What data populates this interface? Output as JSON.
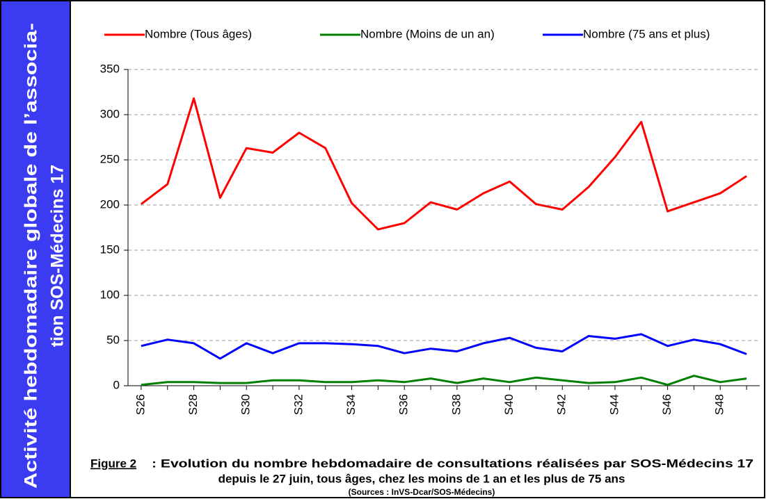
{
  "sidebar": {
    "lines": [
      "Activité hebdomadaire globale de l’associa-",
      "tion SOS-Médecins 17"
    ]
  },
  "chart_data": {
    "type": "line",
    "categories": [
      "S26",
      null,
      "S28",
      null,
      "S30",
      null,
      "S32",
      null,
      "S34",
      null,
      "S36",
      null,
      "S38",
      null,
      "S40",
      null,
      "S42",
      null,
      "S44",
      null,
      "S46",
      null,
      "S48",
      null
    ],
    "series": [
      {
        "name": "Nombre (Tous âges)",
        "color": "#ff0000",
        "values": [
          201,
          223,
          318,
          208,
          263,
          258,
          280,
          263,
          202,
          173,
          180,
          203,
          195,
          213,
          226,
          201,
          195,
          220,
          253,
          292,
          193,
          203,
          213,
          232
        ]
      },
      {
        "name": "Nombre (Moins de un an)",
        "color": "#008000",
        "values": [
          1,
          4,
          4,
          3,
          3,
          6,
          6,
          4,
          4,
          6,
          4,
          8,
          3,
          8,
          4,
          9,
          6,
          3,
          4,
          9,
          1,
          11,
          4,
          8
        ]
      },
      {
        "name": "Nombre (75 ans et plus)",
        "color": "#0000ff",
        "values": [
          44,
          51,
          47,
          30,
          47,
          36,
          47,
          47,
          46,
          44,
          36,
          41,
          38,
          47,
          53,
          42,
          38,
          55,
          52,
          57,
          44,
          51,
          46,
          35
        ]
      }
    ],
    "ylim": [
      0,
      350
    ],
    "yticks": [
      0,
      50,
      100,
      150,
      200,
      250,
      300,
      350
    ],
    "grid": true,
    "legend": "top",
    "caption": {
      "figure": "Figure 2",
      "lines": [
        " : Evolution du nombre hebdomadaire de consultations réalisées par SOS-Médecins 17",
        "depuis le 27 juin, tous âges, chez les moins de 1 an et les plus de 75 ans"
      ],
      "source": "(Sources : InVS-Dcar/SOS-Médecins)"
    }
  }
}
